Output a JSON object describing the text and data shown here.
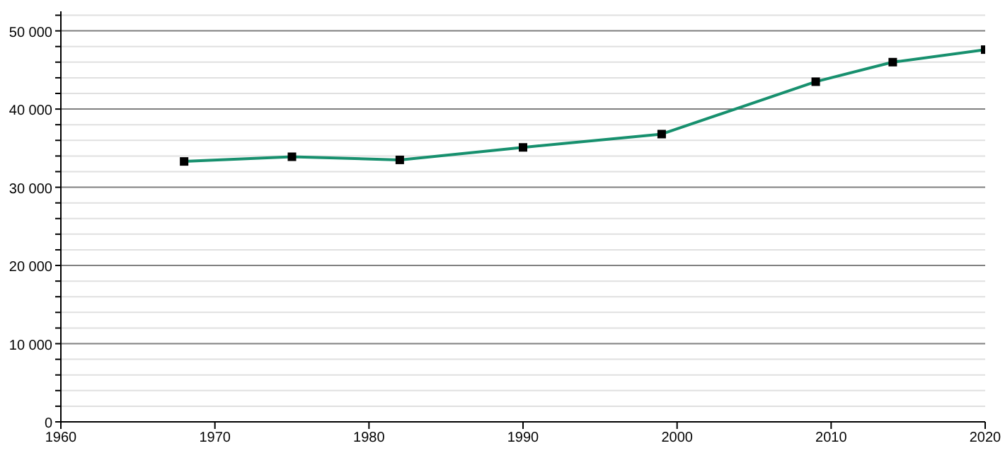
{
  "chart_data": {
    "type": "line",
    "x": [
      1968,
      1975,
      1982,
      1990,
      1999,
      2009,
      2014,
      2020
    ],
    "series": [
      {
        "color": "#17906e",
        "values": [
          33300,
          33900,
          33500,
          35100,
          36800,
          43500,
          46000,
          47600
        ]
      }
    ],
    "xlim": [
      1960,
      2020
    ],
    "xticks": [
      1960,
      1970,
      1980,
      1990,
      2000,
      2010,
      2020
    ],
    "ylim": [
      0,
      52500
    ],
    "yticks": [
      {
        "value": 0,
        "label": "0"
      },
      {
        "value": 2000,
        "label": null
      },
      {
        "value": 4000,
        "label": null
      },
      {
        "value": 6000,
        "label": null
      },
      {
        "value": 8000,
        "label": null
      },
      {
        "value": 10000,
        "label": "10 000"
      },
      {
        "value": 12000,
        "label": null
      },
      {
        "value": 14000,
        "label": null
      },
      {
        "value": 16000,
        "label": null
      },
      {
        "value": 18000,
        "label": null
      },
      {
        "value": 20000,
        "label": "20 000"
      },
      {
        "value": 22000,
        "label": null
      },
      {
        "value": 24000,
        "label": null
      },
      {
        "value": 26000,
        "label": null
      },
      {
        "value": 28000,
        "label": null
      },
      {
        "value": 30000,
        "label": "30 000"
      },
      {
        "value": 32000,
        "label": null
      },
      {
        "value": 34000,
        "label": null
      },
      {
        "value": 36000,
        "label": null
      },
      {
        "value": 38000,
        "label": null
      },
      {
        "value": 40000,
        "label": "40 000"
      },
      {
        "value": 42000,
        "label": null
      },
      {
        "value": 44000,
        "label": null
      },
      {
        "value": 46000,
        "label": null
      },
      {
        "value": 48000,
        "label": null
      },
      {
        "value": 50000,
        "label": "50 000"
      },
      {
        "value": 52000,
        "label": null
      }
    ],
    "grid": "y",
    "marker": "square",
    "line_style": "solid"
  }
}
